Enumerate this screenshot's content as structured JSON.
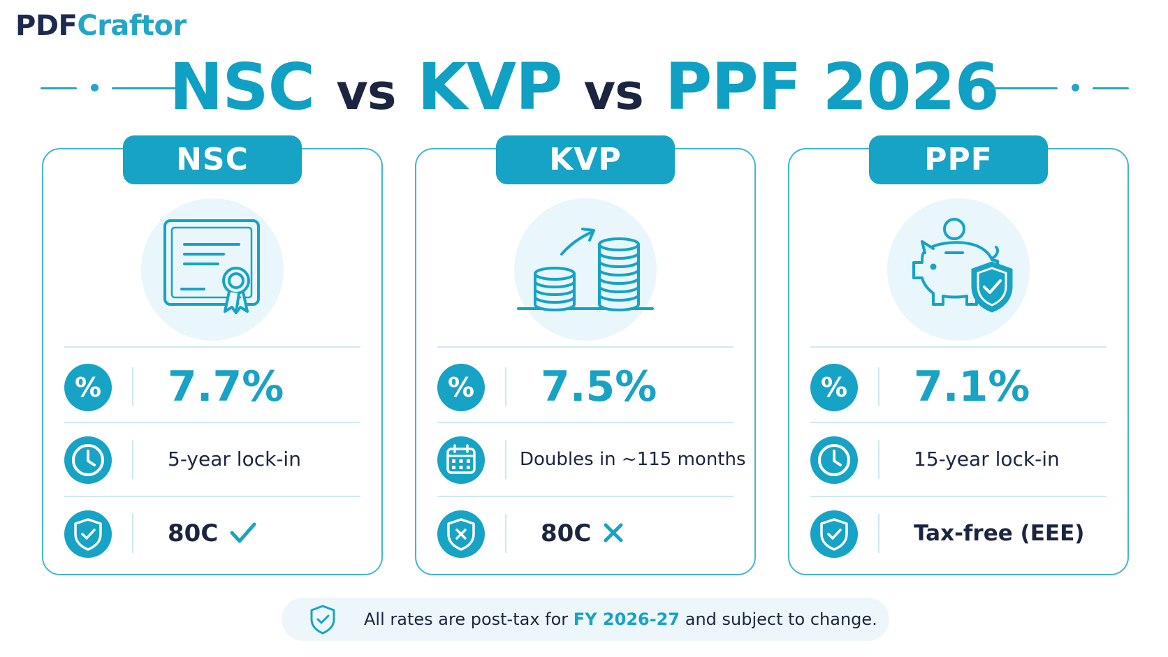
{
  "brand": {
    "part1": "PDF",
    "part2": "Craftor"
  },
  "title": {
    "a": "NSC",
    "vs1": "vs",
    "b": "KVP",
    "vs2": "vs",
    "c": "PPF 2026"
  },
  "cards": [
    {
      "label": "NSC",
      "illustration": "certificate-icon",
      "rate": "7.7%",
      "rate_icon": "percent-icon",
      "term_icon": "clock-icon",
      "term": "5-year lock-in",
      "tax_icon": "shield-check-icon",
      "tax": "80C",
      "tax_mark": "check"
    },
    {
      "label": "KVP",
      "illustration": "coin-stacks-icon",
      "rate": "7.5%",
      "rate_icon": "percent-icon",
      "term_icon": "calendar-icon",
      "term": "Doubles in ~115 months",
      "tax_icon": "shield-x-icon",
      "tax": "80C",
      "tax_mark": "cross"
    },
    {
      "label": "PPF",
      "illustration": "piggy-bank-shield-icon",
      "rate": "7.1%",
      "rate_icon": "percent-icon",
      "term_icon": "clock-icon",
      "term": "15-year lock-in",
      "tax_icon": "shield-check-icon",
      "tax": "Tax-free (EEE)",
      "tax_mark": ""
    }
  ],
  "footer": {
    "icon": "shield-check-icon",
    "before": "All rates are post-tax for",
    "highlight": "FY 2026-27",
    "after": "and subject to change."
  },
  "colors": {
    "accent": "#16a3c6",
    "navy": "#1b2540",
    "halo": "#e9f6fb"
  }
}
